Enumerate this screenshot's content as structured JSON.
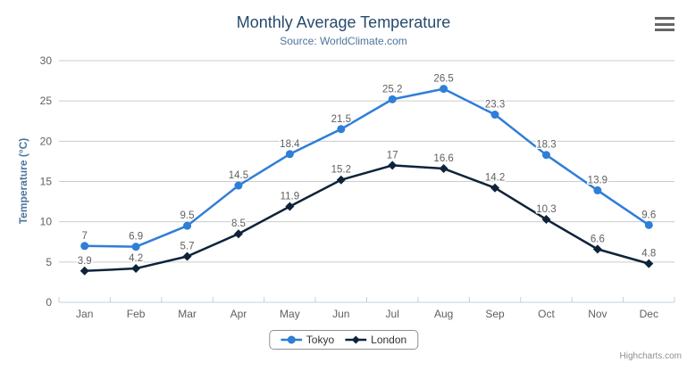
{
  "header": {
    "title": "Monthly Average Temperature",
    "subtitle": "Source: WorldClimate.com"
  },
  "chart_data": {
    "type": "line",
    "title": "Monthly Average Temperature",
    "subtitle": "Source: WorldClimate.com",
    "categories": [
      "Jan",
      "Feb",
      "Mar",
      "Apr",
      "May",
      "Jun",
      "Jul",
      "Aug",
      "Sep",
      "Oct",
      "Nov",
      "Dec"
    ],
    "series": [
      {
        "name": "Tokyo",
        "color": "#2f7ed8",
        "marker": "circle",
        "values": [
          7,
          6.9,
          9.5,
          14.5,
          18.4,
          21.5,
          25.2,
          26.5,
          23.3,
          18.3,
          13.9,
          9.6
        ]
      },
      {
        "name": "London",
        "color": "#0d233a",
        "marker": "diamond",
        "values": [
          3.9,
          4.2,
          5.7,
          8.5,
          11.9,
          15.2,
          17,
          16.6,
          14.2,
          10.3,
          6.6,
          4.8
        ]
      }
    ],
    "xlabel": "",
    "ylabel": "Temperature (°C)",
    "ylim": [
      0,
      30
    ],
    "yticks": [
      0,
      5,
      10,
      15,
      20,
      25,
      30
    ],
    "grid": true,
    "data_labels": true,
    "legend_position": "bottom-center"
  },
  "credits": {
    "label": "Highcharts.com"
  },
  "icons": {
    "menu": "hamburger-icon"
  },
  "colors": {
    "background": "#ffffff",
    "title": "#274b6d",
    "subtitle": "#4d759e",
    "axis_title": "#4d759e",
    "tick_label": "#606060",
    "data_label": "#606060",
    "grid_line": "#cccccc",
    "axis_line": "#c0d0e0",
    "legend_border": "#909090",
    "legend_text": "#333333",
    "credits": "#909090",
    "menu_icon": "#666666"
  }
}
